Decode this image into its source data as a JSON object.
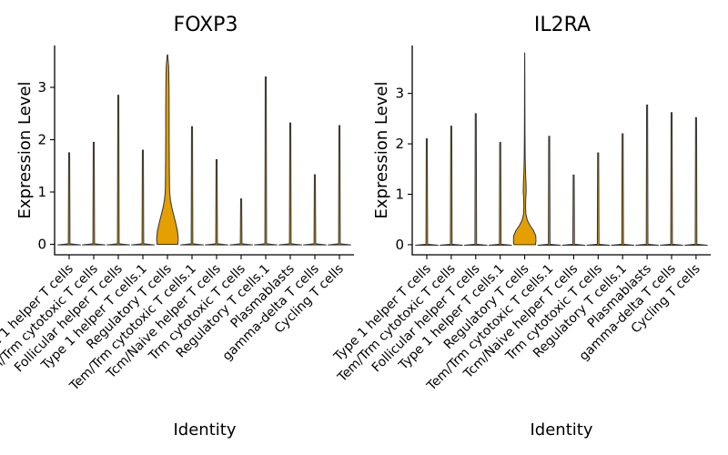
{
  "categories": [
    "Type 1 helper T cells",
    "Tem/Trm cytotoxic T cells",
    "Follicular helper T cells",
    "Type 1 helper T cells.1",
    "Regulatory T cells",
    "Tem/Trm cytotoxic T cells.1",
    "Tcm/Naive helper T cells",
    "Trm cytotoxic T cells",
    "Regulatory T cells.1",
    "Plasmablasts",
    "gamma-delta T cells",
    "Cycling T cells"
  ],
  "chart_data": [
    {
      "type": "violin",
      "title": "FOXP3",
      "xlabel": "Identity",
      "ylabel": "Expression Level",
      "ylim": [
        -0.2,
        3.8
      ],
      "yticks": [
        0,
        1,
        2,
        3
      ],
      "fill_color": "#E69F00",
      "highlight_category": "Regulatory T cells",
      "max_values": [
        1.75,
        1.95,
        2.85,
        1.8,
        3.62,
        2.25,
        1.62,
        0.87,
        3.2,
        2.32,
        1.33,
        2.27
      ],
      "highlight_profile": {
        "y": [
          0,
          0.1,
          0.25,
          0.4,
          0.55,
          0.7,
          0.85,
          1.0,
          1.1,
          1.3,
          1.6,
          2.0,
          2.5,
          3.0,
          3.4,
          3.62
        ],
        "halfwidth": [
          0.42,
          0.44,
          0.41,
          0.34,
          0.26,
          0.18,
          0.12,
          0.09,
          0.085,
          0.08,
          0.075,
          0.07,
          0.07,
          0.065,
          0.05,
          0.01
        ]
      }
    },
    {
      "type": "violin",
      "title": "IL2RA",
      "xlabel": "Identity",
      "ylabel": "Expression Level",
      "ylim": [
        -0.2,
        3.95
      ],
      "yticks": [
        0,
        1,
        2,
        3
      ],
      "fill_color": "#E69F00",
      "highlight_category": "Regulatory T cells",
      "max_values": [
        2.1,
        2.35,
        2.6,
        2.03,
        3.8,
        2.15,
        1.38,
        1.82,
        2.2,
        2.77,
        2.62,
        2.52
      ],
      "highlight_profile": {
        "y": [
          0,
          0.08,
          0.18,
          0.28,
          0.38,
          0.48,
          0.6,
          0.75,
          0.9,
          1.05,
          1.2,
          1.4,
          1.7,
          2.2,
          2.8,
          3.3,
          3.8
        ],
        "halfwidth": [
          0.44,
          0.46,
          0.45,
          0.36,
          0.22,
          0.11,
          0.05,
          0.035,
          0.04,
          0.06,
          0.055,
          0.035,
          0.02,
          0.012,
          0.008,
          0.006,
          0.002
        ]
      }
    }
  ]
}
